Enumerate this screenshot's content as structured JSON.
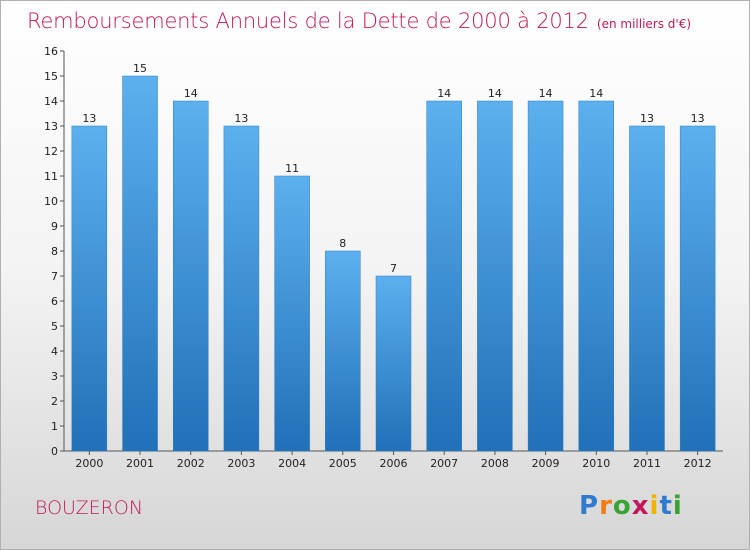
{
  "header": {
    "title": "Remboursements Annuels de la Dette de 2000 à 2012",
    "unit": "(en milliers d'€)"
  },
  "footer": {
    "location": "BOUZERON",
    "logo_letters": [
      "P",
      "r",
      "o",
      "x",
      "i",
      "t",
      "i"
    ],
    "logo_colors": [
      "#2e7bcf",
      "#f07c12",
      "#3aa335",
      "#c2185b",
      "#f0b400",
      "#2e7bcf",
      "#3aa335"
    ]
  },
  "chart_data": {
    "type": "bar",
    "title": "Remboursements Annuels de la Dette de 2000 à 2012",
    "xlabel": "",
    "ylabel": "",
    "categories": [
      "2000",
      "2001",
      "2002",
      "2003",
      "2004",
      "2005",
      "2006",
      "2007",
      "2008",
      "2009",
      "2010",
      "2011",
      "2012"
    ],
    "values": [
      13,
      15,
      14,
      13,
      11,
      8,
      7,
      14,
      14,
      14,
      14,
      13,
      13
    ],
    "value_labels": [
      "13",
      "15",
      "14",
      "13",
      "11",
      "8",
      "7",
      "14",
      "14",
      "14",
      "14",
      "13",
      "13"
    ],
    "ylim": [
      0,
      16
    ],
    "yticks": [
      "0",
      "1",
      "2",
      "3",
      "4",
      "5",
      "6",
      "7",
      "8",
      "9",
      "10",
      "11",
      "12",
      "13",
      "14",
      "15",
      "16"
    ],
    "grid": false,
    "bar_color": "#3a8fd6"
  }
}
